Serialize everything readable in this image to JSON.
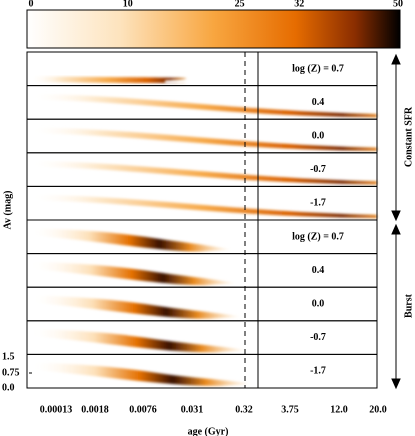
{
  "colorbar": {
    "ticks": [
      "0",
      "10",
      "25",
      "32",
      "50"
    ]
  },
  "panels": [
    {
      "group": "Constant SFR",
      "label": "log (Z) = 0.7"
    },
    {
      "group": "Constant SFR",
      "label": "0.4"
    },
    {
      "group": "Constant SFR",
      "label": "0.0"
    },
    {
      "group": "Constant SFR",
      "label": "-0.7"
    },
    {
      "group": "Constant SFR",
      "label": "-1.7"
    },
    {
      "group": "Burst",
      "label": "log (Z) = 0.7"
    },
    {
      "group": "Burst",
      "label": "0.4"
    },
    {
      "group": "Burst",
      "label": "0.0"
    },
    {
      "group": "Burst",
      "label": "-0.7"
    },
    {
      "group": "Burst",
      "label": "-1.7"
    }
  ],
  "groups": [
    "Constant SFR",
    "Burst"
  ],
  "y_axis": {
    "label": "Av (mag)",
    "ticks": [
      "1.5",
      "0.75",
      "0.0"
    ]
  },
  "x_axis": {
    "label": "age (Gyr)",
    "ticks": [
      "0.00013",
      "0.0018",
      "0.0076",
      "0.031",
      "0.32",
      "3.75",
      "12.0",
      "20.0"
    ]
  }
}
